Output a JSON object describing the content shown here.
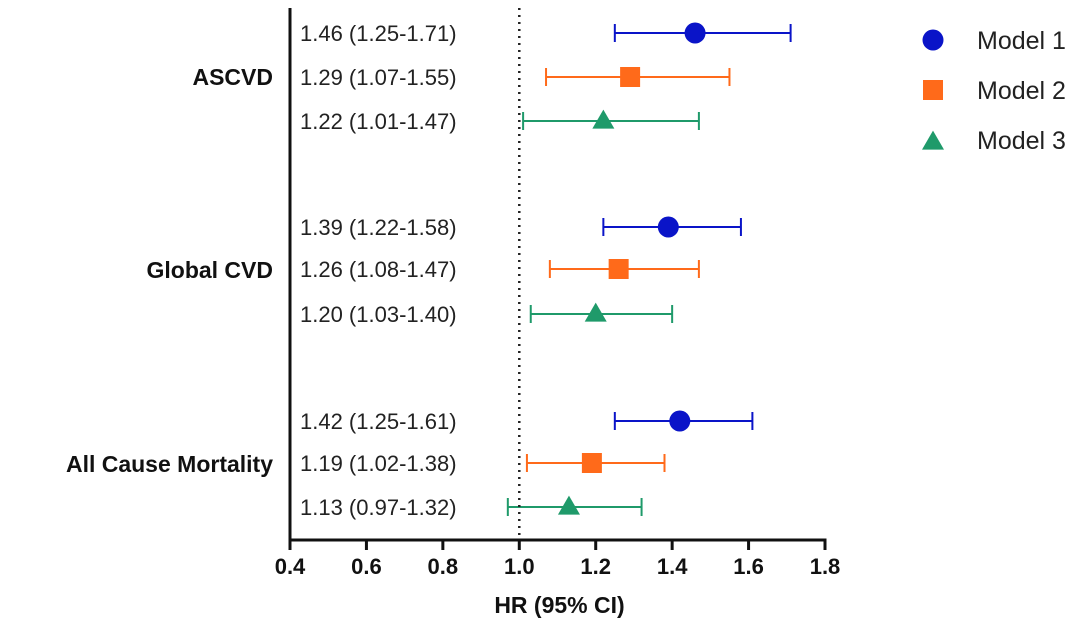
{
  "chart_data": {
    "type": "forest",
    "xlabel": "HR (95% CI)",
    "xlim": [
      0.4,
      1.8
    ],
    "xticks": [
      "0.4",
      "0.6",
      "0.8",
      "1.0",
      "1.2",
      "1.4",
      "1.6",
      "1.8"
    ],
    "reference_line": 1.0,
    "legend_position": "top-right",
    "series": [
      {
        "name": "Model 1",
        "marker": "circle",
        "color": "#0a14c8"
      },
      {
        "name": "Model 2",
        "marker": "square",
        "color": "#ff6a1a"
      },
      {
        "name": "Model 3",
        "marker": "triangle",
        "color": "#1f9a6a"
      }
    ],
    "groups": [
      {
        "label": "ASCVD",
        "rows": [
          {
            "series": "Model 1",
            "hr": 1.46,
            "lo": 1.25,
            "hi": 1.71,
            "text": "1.46 (1.25-1.71)"
          },
          {
            "series": "Model 2",
            "hr": 1.29,
            "lo": 1.07,
            "hi": 1.55,
            "text": "1.29 (1.07-1.55)"
          },
          {
            "series": "Model 3",
            "hr": 1.22,
            "lo": 1.01,
            "hi": 1.47,
            "text": "1.22 (1.01-1.47)"
          }
        ]
      },
      {
        "label": "Global CVD",
        "rows": [
          {
            "series": "Model 1",
            "hr": 1.39,
            "lo": 1.22,
            "hi": 1.58,
            "text": "1.39 (1.22-1.58)"
          },
          {
            "series": "Model 2",
            "hr": 1.26,
            "lo": 1.08,
            "hi": 1.47,
            "text": "1.26 (1.08-1.47)"
          },
          {
            "series": "Model 3",
            "hr": 1.2,
            "lo": 1.03,
            "hi": 1.4,
            "text": "1.20 (1.03-1.40)"
          }
        ]
      },
      {
        "label": "All Cause Mortality",
        "rows": [
          {
            "series": "Model 1",
            "hr": 1.42,
            "lo": 1.25,
            "hi": 1.61,
            "text": "1.42 (1.25-1.61)"
          },
          {
            "series": "Model 2",
            "hr": 1.19,
            "lo": 1.02,
            "hi": 1.38,
            "text": "1.19 (1.02-1.38)"
          },
          {
            "series": "Model 3",
            "hr": 1.13,
            "lo": 0.97,
            "hi": 1.32,
            "text": "1.13 (0.97-1.32)"
          }
        ]
      }
    ]
  }
}
